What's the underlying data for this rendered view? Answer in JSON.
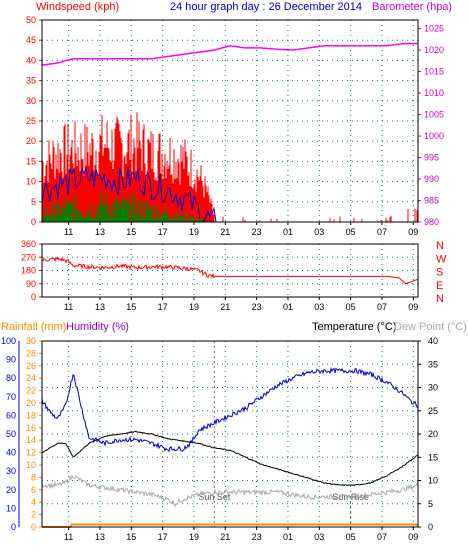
{
  "colors": {
    "red": "#ff0000",
    "blue": "#0000cc",
    "green": "#008000",
    "magenta": "#ff00ff",
    "teal": "#008080",
    "orange": "#ff8c00",
    "purple": "#9900cc",
    "black": "#000000",
    "gray": "#aaaaaa",
    "cyan": "#00a0a0",
    "grid": "#008080"
  },
  "chart_data": [
    {
      "type": "line",
      "title": "24 hour graph day : 26 December 2014",
      "left_axis_label": "Windspeed (kph)",
      "right_axis_label": "Barometer (hpa)",
      "left_ticks": [
        "0",
        "5",
        "10",
        "15",
        "20",
        "25",
        "30",
        "35",
        "40",
        "45",
        "50"
      ],
      "right_ticks": [
        "980",
        "985",
        "990",
        "995",
        "1000",
        "1005",
        "1010",
        "1015",
        "1020",
        "1025"
      ],
      "x_ticks": [
        "11",
        "13",
        "15",
        "17",
        "19",
        "21",
        "23",
        "01",
        "03",
        "05",
        "07",
        "09"
      ],
      "ylim_left": [
        0,
        50
      ],
      "ylim_right": [
        980,
        1027
      ],
      "series": [
        {
          "name": "Barometer (hpa)",
          "x_hours": [
            0,
            1,
            2,
            3,
            4,
            5,
            6,
            7,
            8,
            9,
            10,
            11,
            12,
            13,
            14,
            15,
            16,
            17,
            18,
            19,
            20,
            21,
            22,
            23,
            24
          ],
          "values": [
            1016.5,
            1017,
            1018,
            1018,
            1018,
            1018,
            1018,
            1018,
            1018.5,
            1019,
            1019.5,
            1020,
            1021,
            1020.5,
            1020.5,
            1020.2,
            1020,
            1020.5,
            1021,
            1021,
            1021,
            1021,
            1021,
            1021.5,
            1021.5
          ]
        }
      ],
      "wind_gust_profile": {
        "x_hours": [
          0,
          1,
          2,
          3,
          4,
          5,
          6,
          7,
          8,
          9,
          10,
          10.5,
          11,
          12,
          13,
          14,
          15,
          16,
          17,
          18,
          19,
          20,
          21,
          22,
          23,
          24
        ],
        "values": [
          18,
          22,
          23,
          23,
          25,
          24,
          25,
          22,
          22,
          20,
          15,
          10,
          2,
          0,
          1,
          2,
          1,
          0,
          1,
          0,
          2,
          1,
          0,
          2,
          4,
          5
        ]
      },
      "wind_avg_profile": {
        "x_hours": [
          0,
          1,
          2,
          3,
          4,
          5,
          6,
          7,
          8,
          9,
          10,
          10.5,
          11,
          12,
          24
        ],
        "values": [
          8,
          9,
          10,
          11,
          11,
          10,
          11,
          9,
          8,
          6,
          3,
          1,
          0,
          0,
          0
        ]
      },
      "wind_low_profile": {
        "x_hours": [
          0,
          1,
          2,
          3,
          4,
          5,
          6,
          7,
          8,
          9,
          10,
          10.5,
          11,
          12,
          24
        ],
        "values": [
          3,
          4,
          5,
          5,
          6,
          5,
          5,
          4,
          3,
          2,
          1,
          0,
          0,
          0,
          0
        ]
      }
    },
    {
      "type": "line",
      "title": "",
      "right_labels": [
        "N",
        "W",
        "S",
        "E",
        "N"
      ],
      "left_ticks": [
        "0",
        "90",
        "180",
        "270",
        "360"
      ],
      "x_ticks": [
        "11",
        "13",
        "15",
        "17",
        "19",
        "21",
        "23",
        "01",
        "03",
        "05",
        "07",
        "09"
      ],
      "ylim": [
        0,
        360
      ],
      "series": [
        {
          "name": "Wind direction",
          "x_hours": [
            0,
            0.5,
            1,
            1.5,
            2,
            3,
            4,
            5,
            6,
            7,
            8,
            9,
            9.5,
            10,
            10.5,
            11,
            12,
            13,
            14,
            15,
            16,
            17,
            18,
            19,
            20,
            21,
            22,
            22.8,
            23.2,
            24
          ],
          "values": [
            250,
            255,
            258,
            250,
            215,
            205,
            200,
            210,
            200,
            205,
            205,
            195,
            190,
            180,
            150,
            140,
            140,
            140,
            140,
            140,
            140,
            140,
            140,
            140,
            140,
            140,
            140,
            130,
            90,
            120
          ]
        }
      ]
    },
    {
      "type": "line",
      "title": "",
      "rainfall_label": "Rainfall (mm)",
      "humidity_label": "Humidity (%)",
      "temperature_label": "Temperature (°C)",
      "dewpoint_label": "Dew Point (°C)",
      "humidity_ticks": [
        "0",
        "10",
        "20",
        "30",
        "40",
        "50",
        "60",
        "70",
        "80",
        "90",
        "100"
      ],
      "rain_ticks": [
        "0",
        "2",
        "4",
        "6",
        "8",
        "10",
        "12",
        "14",
        "16",
        "18",
        "20",
        "22",
        "24",
        "26",
        "28",
        "30"
      ],
      "temp_ticks": [
        "0",
        "5",
        "10",
        "15",
        "20",
        "25",
        "30",
        "35",
        "40"
      ],
      "x_ticks": [
        "11",
        "13",
        "15",
        "17",
        "19",
        "21",
        "23",
        "01",
        "03",
        "05",
        "07",
        "09"
      ],
      "sunset_label": "Sun Set",
      "sunrise_label": "Sun Rise",
      "sunset_hour": 20.3,
      "sunrise_hour": 29.0,
      "ylim_humidity": [
        0,
        100
      ],
      "ylim_temp": [
        0,
        40
      ],
      "series": [
        {
          "name": "Humidity (%)",
          "x_hours": [
            0,
            0.5,
            1,
            1.5,
            2,
            2.5,
            3,
            4,
            5,
            6,
            7,
            8,
            9,
            9.5,
            10,
            11,
            12,
            13,
            14,
            15,
            16,
            17,
            18,
            19,
            20,
            21,
            22,
            23,
            23.5,
            24
          ],
          "values": [
            68,
            62,
            58,
            65,
            83,
            65,
            48,
            45,
            47,
            47,
            45,
            42,
            42,
            45,
            52,
            56,
            60,
            64,
            70,
            76,
            80,
            83,
            84,
            84,
            84,
            82,
            78,
            72,
            68,
            65
          ]
        },
        {
          "name": "Temperature (°C)",
          "x_hours": [
            0,
            0.5,
            1,
            1.5,
            2,
            3,
            4,
            5,
            6,
            7,
            8,
            9,
            10,
            11,
            12,
            13,
            14,
            15,
            16,
            17,
            18,
            19,
            20,
            21,
            22,
            23,
            24
          ],
          "values": [
            16,
            17,
            18,
            18,
            15,
            18,
            19.5,
            20,
            20.5,
            20,
            19,
            18.5,
            18,
            17,
            16.5,
            15,
            13.5,
            12.5,
            11.5,
            10.5,
            9.5,
            9,
            9,
            9.5,
            11,
            13,
            15.5
          ]
        },
        {
          "name": "Dew Point (°C)",
          "x_hours": [
            0,
            0.5,
            1,
            1.5,
            2,
            2.5,
            3,
            4,
            5,
            6,
            7,
            8,
            8.5,
            9,
            10,
            11,
            12,
            13,
            14,
            15,
            16,
            17,
            18,
            19,
            20,
            21,
            22,
            23,
            24
          ],
          "values": [
            9,
            9,
            9,
            9.5,
            11,
            10,
            9,
            8.5,
            8,
            7.5,
            7,
            6,
            5,
            6,
            7,
            7.5,
            7.5,
            7.5,
            7.5,
            7.5,
            7,
            6.5,
            6.5,
            6.5,
            6.5,
            7,
            7.5,
            8,
            9
          ]
        },
        {
          "name": "Rainfall (mm)",
          "x_hours": [
            0,
            1.8,
            1.9,
            24
          ],
          "values": [
            0,
            0,
            0.4,
            0.4
          ]
        }
      ]
    }
  ]
}
